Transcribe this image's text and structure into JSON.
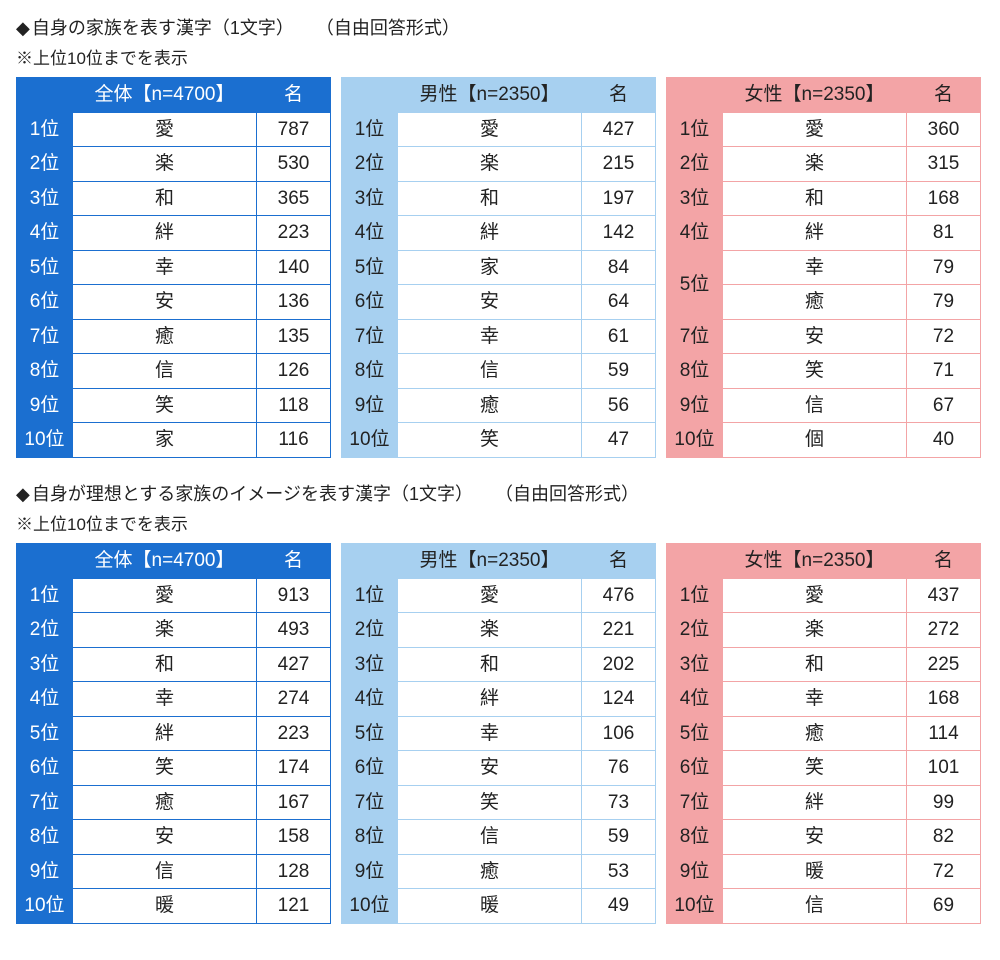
{
  "sections": [
    {
      "title_prefix": "◆",
      "title": "自身の家族を表す漢字（1文字）",
      "title_suffix": "（自由回答形式）",
      "note": "※上位10位までを表示",
      "tables": [
        {
          "theme": "blue",
          "colors": {
            "fill": "#1b6fd0",
            "line": "#1b6fd0",
            "header_text": "#ffffff"
          },
          "col_widths": {
            "rank": 56,
            "label": 184,
            "count": 74
          },
          "headers": {
            "blank": "",
            "label": "全体【n=4700】",
            "count": "名"
          },
          "rows": [
            {
              "rank": "1位",
              "label": "愛",
              "count": 787,
              "bold": true
            },
            {
              "rank": "2位",
              "label": "楽",
              "count": 530,
              "bold": true
            },
            {
              "rank": "3位",
              "label": "和",
              "count": 365,
              "bold": true
            },
            {
              "rank": "4位",
              "label": "絆",
              "count": 223
            },
            {
              "rank": "5位",
              "label": "幸",
              "count": 140
            },
            {
              "rank": "6位",
              "label": "安",
              "count": 136
            },
            {
              "rank": "7位",
              "label": "癒",
              "count": 135
            },
            {
              "rank": "8位",
              "label": "信",
              "count": 126
            },
            {
              "rank": "9位",
              "label": "笑",
              "count": 118
            },
            {
              "rank": "10位",
              "label": "家",
              "count": 116
            }
          ]
        },
        {
          "theme": "lightblue",
          "colors": {
            "fill": "#a7d0f0",
            "line": "#a7d0f0",
            "header_text": "#222222"
          },
          "col_widths": {
            "rank": 56,
            "label": 184,
            "count": 74
          },
          "headers": {
            "blank": "",
            "label": "男性【n=2350】",
            "count": "名"
          },
          "rows": [
            {
              "rank": "1位",
              "label": "愛",
              "count": 427,
              "bold": true
            },
            {
              "rank": "2位",
              "label": "楽",
              "count": 215,
              "bold": true
            },
            {
              "rank": "3位",
              "label": "和",
              "count": 197,
              "bold": true
            },
            {
              "rank": "4位",
              "label": "絆",
              "count": 142
            },
            {
              "rank": "5位",
              "label": "家",
              "count": 84
            },
            {
              "rank": "6位",
              "label": "安",
              "count": 64
            },
            {
              "rank": "7位",
              "label": "幸",
              "count": 61
            },
            {
              "rank": "8位",
              "label": "信",
              "count": 59
            },
            {
              "rank": "9位",
              "label": "癒",
              "count": 56
            },
            {
              "rank": "10位",
              "label": "笑",
              "count": 47
            }
          ]
        },
        {
          "theme": "pink",
          "colors": {
            "fill": "#f3a4a6",
            "line": "#f3a4a6",
            "header_text": "#222222"
          },
          "col_widths": {
            "rank": 56,
            "label": 184,
            "count": 74
          },
          "headers": {
            "blank": "",
            "label": "女性【n=2350】",
            "count": "名"
          },
          "rows": [
            {
              "rank": "1位",
              "label": "愛",
              "count": 360,
              "bold": true
            },
            {
              "rank": "2位",
              "label": "楽",
              "count": 315,
              "bold": true
            },
            {
              "rank": "3位",
              "label": "和",
              "count": 168,
              "bold": true
            },
            {
              "rank": "4位",
              "label": "絆",
              "count": 81
            },
            {
              "rank": "5位",
              "label": "幸",
              "count": 79,
              "rowspan": 2
            },
            {
              "rank": "",
              "label": "癒",
              "count": 79,
              "merged": true
            },
            {
              "rank": "7位",
              "label": "安",
              "count": 72
            },
            {
              "rank": "8位",
              "label": "笑",
              "count": 71
            },
            {
              "rank": "9位",
              "label": "信",
              "count": 67
            },
            {
              "rank": "10位",
              "label": "個",
              "count": 40
            }
          ]
        }
      ]
    },
    {
      "title_prefix": "◆",
      "title": "自身が理想とする家族のイメージを表す漢字（1文字）",
      "title_suffix": "（自由回答形式）",
      "note": "※上位10位までを表示",
      "tables": [
        {
          "theme": "blue",
          "colors": {
            "fill": "#1b6fd0",
            "line": "#1b6fd0",
            "header_text": "#ffffff"
          },
          "col_widths": {
            "rank": 56,
            "label": 184,
            "count": 74
          },
          "headers": {
            "blank": "",
            "label": "全体【n=4700】",
            "count": "名"
          },
          "rows": [
            {
              "rank": "1位",
              "label": "愛",
              "count": 913,
              "bold": true
            },
            {
              "rank": "2位",
              "label": "楽",
              "count": 493,
              "bold": true
            },
            {
              "rank": "3位",
              "label": "和",
              "count": 427,
              "bold": true
            },
            {
              "rank": "4位",
              "label": "幸",
              "count": 274
            },
            {
              "rank": "5位",
              "label": "絆",
              "count": 223
            },
            {
              "rank": "6位",
              "label": "笑",
              "count": 174
            },
            {
              "rank": "7位",
              "label": "癒",
              "count": 167
            },
            {
              "rank": "8位",
              "label": "安",
              "count": 158
            },
            {
              "rank": "9位",
              "label": "信",
              "count": 128
            },
            {
              "rank": "10位",
              "label": "暖",
              "count": 121
            }
          ]
        },
        {
          "theme": "lightblue",
          "colors": {
            "fill": "#a7d0f0",
            "line": "#a7d0f0",
            "header_text": "#222222"
          },
          "col_widths": {
            "rank": 56,
            "label": 184,
            "count": 74
          },
          "headers": {
            "blank": "",
            "label": "男性【n=2350】",
            "count": "名"
          },
          "rows": [
            {
              "rank": "1位",
              "label": "愛",
              "count": 476,
              "bold": true
            },
            {
              "rank": "2位",
              "label": "楽",
              "count": 221,
              "bold": true
            },
            {
              "rank": "3位",
              "label": "和",
              "count": 202,
              "bold": true
            },
            {
              "rank": "4位",
              "label": "絆",
              "count": 124
            },
            {
              "rank": "5位",
              "label": "幸",
              "count": 106
            },
            {
              "rank": "6位",
              "label": "安",
              "count": 76
            },
            {
              "rank": "7位",
              "label": "笑",
              "count": 73
            },
            {
              "rank": "8位",
              "label": "信",
              "count": 59
            },
            {
              "rank": "9位",
              "label": "癒",
              "count": 53
            },
            {
              "rank": "10位",
              "label": "暖",
              "count": 49
            }
          ]
        },
        {
          "theme": "pink",
          "colors": {
            "fill": "#f3a4a6",
            "line": "#f3a4a6",
            "header_text": "#222222"
          },
          "col_widths": {
            "rank": 56,
            "label": 184,
            "count": 74
          },
          "headers": {
            "blank": "",
            "label": "女性【n=2350】",
            "count": "名"
          },
          "rows": [
            {
              "rank": "1位",
              "label": "愛",
              "count": 437,
              "bold": true
            },
            {
              "rank": "2位",
              "label": "楽",
              "count": 272,
              "bold": true
            },
            {
              "rank": "3位",
              "label": "和",
              "count": 225,
              "bold": true
            },
            {
              "rank": "4位",
              "label": "幸",
              "count": 168
            },
            {
              "rank": "5位",
              "label": "癒",
              "count": 114
            },
            {
              "rank": "6位",
              "label": "笑",
              "count": 101
            },
            {
              "rank": "7位",
              "label": "絆",
              "count": 99
            },
            {
              "rank": "8位",
              "label": "安",
              "count": 82
            },
            {
              "rank": "9位",
              "label": "暖",
              "count": 72
            },
            {
              "rank": "10位",
              "label": "信",
              "count": 69
            }
          ]
        }
      ]
    }
  ]
}
